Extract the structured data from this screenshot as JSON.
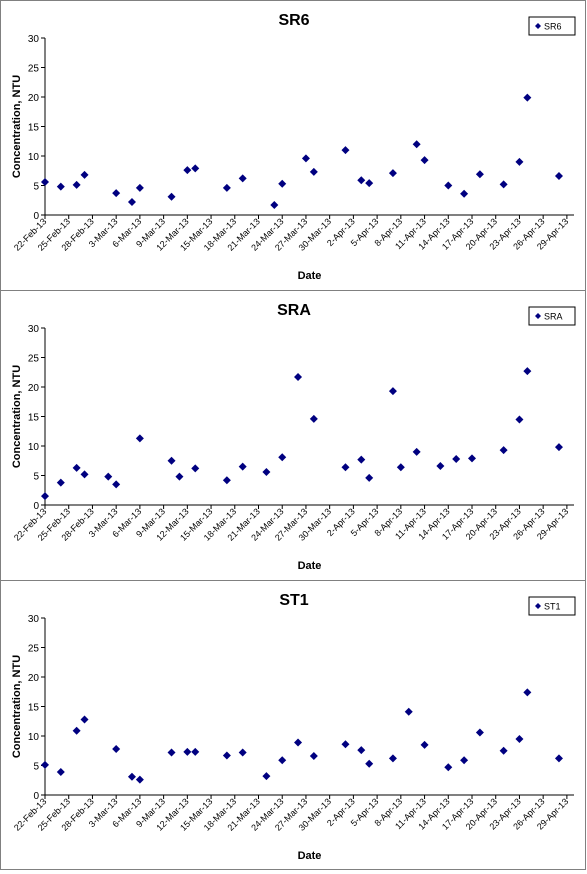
{
  "chart_data": [
    {
      "type": "scatter",
      "title": "SR6",
      "xlabel": "Date",
      "ylabel": "Concentration, NTU",
      "ylim": [
        0,
        30
      ],
      "yticks": [
        0,
        5,
        10,
        15,
        20,
        25,
        30
      ],
      "xticks": [
        "22-Feb-13",
        "25-Feb-13",
        "28-Feb-13",
        "3-Mar-13",
        "6-Mar-13",
        "9-Mar-13",
        "12-Mar-13",
        "15-Mar-13",
        "18-Mar-13",
        "21-Mar-13",
        "24-Mar-13",
        "27-Mar-13",
        "30-Mar-13",
        "2-Apr-13",
        "5-Apr-13",
        "8-Apr-13",
        "11-Apr-13",
        "14-Apr-13",
        "17-Apr-13",
        "20-Apr-13",
        "23-Apr-13",
        "26-Apr-13",
        "29-Apr-13"
      ],
      "grid": false,
      "legend_position": "top-right",
      "marker_color": "#000080",
      "series": [
        {
          "name": "SR6",
          "points": [
            {
              "x": "2013-02-22",
              "y": 5.6
            },
            {
              "x": "2013-02-24",
              "y": 4.8
            },
            {
              "x": "2013-02-26",
              "y": 5.1
            },
            {
              "x": "2013-02-27",
              "y": 6.8
            },
            {
              "x": "2013-03-03",
              "y": 3.7
            },
            {
              "x": "2013-03-05",
              "y": 2.2
            },
            {
              "x": "2013-03-06",
              "y": 4.6
            },
            {
              "x": "2013-03-10",
              "y": 3.1
            },
            {
              "x": "2013-03-12",
              "y": 7.6
            },
            {
              "x": "2013-03-13",
              "y": 7.9
            },
            {
              "x": "2013-03-17",
              "y": 4.6
            },
            {
              "x": "2013-03-19",
              "y": 6.2
            },
            {
              "x": "2013-03-23",
              "y": 1.7
            },
            {
              "x": "2013-03-24",
              "y": 5.3
            },
            {
              "x": "2013-03-27",
              "y": 9.6
            },
            {
              "x": "2013-03-28",
              "y": 7.3
            },
            {
              "x": "2013-04-01",
              "y": 11.0
            },
            {
              "x": "2013-04-03",
              "y": 5.9
            },
            {
              "x": "2013-04-04",
              "y": 5.4
            },
            {
              "x": "2013-04-07",
              "y": 7.1
            },
            {
              "x": "2013-04-10",
              "y": 12.0
            },
            {
              "x": "2013-04-11",
              "y": 9.3
            },
            {
              "x": "2013-04-14",
              "y": 5.0
            },
            {
              "x": "2013-04-16",
              "y": 3.6
            },
            {
              "x": "2013-04-18",
              "y": 6.9
            },
            {
              "x": "2013-04-21",
              "y": 5.2
            },
            {
              "x": "2013-04-23",
              "y": 9.0
            },
            {
              "x": "2013-04-24",
              "y": 19.9
            },
            {
              "x": "2013-04-28",
              "y": 6.6
            }
          ]
        }
      ]
    },
    {
      "type": "scatter",
      "title": "SRA",
      "xlabel": "Date",
      "ylabel": "Concentration, NTU",
      "ylim": [
        0,
        30
      ],
      "yticks": [
        0,
        5,
        10,
        15,
        20,
        25,
        30
      ],
      "xticks": [
        "22-Feb-13",
        "25-Feb-13",
        "28-Feb-13",
        "3-Mar-13",
        "6-Mar-13",
        "9-Mar-13",
        "12-Mar-13",
        "15-Mar-13",
        "18-Mar-13",
        "21-Mar-13",
        "24-Mar-13",
        "27-Mar-13",
        "30-Mar-13",
        "2-Apr-13",
        "5-Apr-13",
        "8-Apr-13",
        "11-Apr-13",
        "14-Apr-13",
        "17-Apr-13",
        "20-Apr-13",
        "23-Apr-13",
        "26-Apr-13",
        "29-Apr-13"
      ],
      "grid": false,
      "legend_position": "top-right",
      "marker_color": "#000080",
      "series": [
        {
          "name": "SRA",
          "points": [
            {
              "x": "2013-02-22",
              "y": 1.5
            },
            {
              "x": "2013-02-24",
              "y": 3.8
            },
            {
              "x": "2013-02-26",
              "y": 6.3
            },
            {
              "x": "2013-02-27",
              "y": 5.2
            },
            {
              "x": "2013-03-02",
              "y": 4.8
            },
            {
              "x": "2013-03-03",
              "y": 3.5
            },
            {
              "x": "2013-03-06",
              "y": 11.3
            },
            {
              "x": "2013-03-10",
              "y": 7.5
            },
            {
              "x": "2013-03-11",
              "y": 4.8
            },
            {
              "x": "2013-03-13",
              "y": 6.2
            },
            {
              "x": "2013-03-17",
              "y": 4.2
            },
            {
              "x": "2013-03-19",
              "y": 6.5
            },
            {
              "x": "2013-03-22",
              "y": 5.6
            },
            {
              "x": "2013-03-24",
              "y": 8.1
            },
            {
              "x": "2013-03-26",
              "y": 21.7
            },
            {
              "x": "2013-03-28",
              "y": 14.6
            },
            {
              "x": "2013-04-01",
              "y": 6.4
            },
            {
              "x": "2013-04-03",
              "y": 7.7
            },
            {
              "x": "2013-04-04",
              "y": 4.6
            },
            {
              "x": "2013-04-07",
              "y": 19.3
            },
            {
              "x": "2013-04-08",
              "y": 6.4
            },
            {
              "x": "2013-04-10",
              "y": 9.0
            },
            {
              "x": "2013-04-13",
              "y": 6.6
            },
            {
              "x": "2013-04-15",
              "y": 7.8
            },
            {
              "x": "2013-04-17",
              "y": 7.9
            },
            {
              "x": "2013-04-21",
              "y": 9.3
            },
            {
              "x": "2013-04-23",
              "y": 14.5
            },
            {
              "x": "2013-04-24",
              "y": 22.7
            },
            {
              "x": "2013-04-28",
              "y": 9.8
            }
          ]
        }
      ]
    },
    {
      "type": "scatter",
      "title": "ST1",
      "xlabel": "Date",
      "ylabel": "Concentration, NTU",
      "ylim": [
        0,
        30
      ],
      "yticks": [
        0,
        5,
        10,
        15,
        20,
        25,
        30
      ],
      "xticks": [
        "22-Feb-13",
        "25-Feb-13",
        "28-Feb-13",
        "3-Mar-13",
        "6-Mar-13",
        "9-Mar-13",
        "12-Mar-13",
        "15-Mar-13",
        "18-Mar-13",
        "21-Mar-13",
        "24-Mar-13",
        "27-Mar-13",
        "30-Mar-13",
        "2-Apr-13",
        "5-Apr-13",
        "8-Apr-13",
        "11-Apr-13",
        "14-Apr-13",
        "17-Apr-13",
        "20-Apr-13",
        "23-Apr-13",
        "26-Apr-13",
        "29-Apr-13"
      ],
      "grid": false,
      "legend_position": "top-right",
      "marker_color": "#000080",
      "series": [
        {
          "name": "ST1",
          "points": [
            {
              "x": "2013-02-22",
              "y": 5.1
            },
            {
              "x": "2013-02-24",
              "y": 3.9
            },
            {
              "x": "2013-02-26",
              "y": 10.9
            },
            {
              "x": "2013-02-27",
              "y": 12.8
            },
            {
              "x": "2013-03-03",
              "y": 7.8
            },
            {
              "x": "2013-03-05",
              "y": 3.1
            },
            {
              "x": "2013-03-06",
              "y": 2.6
            },
            {
              "x": "2013-03-10",
              "y": 7.2
            },
            {
              "x": "2013-03-12",
              "y": 7.3
            },
            {
              "x": "2013-03-13",
              "y": 7.3
            },
            {
              "x": "2013-03-17",
              "y": 6.7
            },
            {
              "x": "2013-03-19",
              "y": 7.2
            },
            {
              "x": "2013-03-22",
              "y": 3.2
            },
            {
              "x": "2013-03-24",
              "y": 5.9
            },
            {
              "x": "2013-03-26",
              "y": 8.9
            },
            {
              "x": "2013-03-28",
              "y": 6.6
            },
            {
              "x": "2013-04-01",
              "y": 8.6
            },
            {
              "x": "2013-04-03",
              "y": 7.6
            },
            {
              "x": "2013-04-04",
              "y": 5.3
            },
            {
              "x": "2013-04-07",
              "y": 6.2
            },
            {
              "x": "2013-04-09",
              "y": 14.1
            },
            {
              "x": "2013-04-11",
              "y": 8.5
            },
            {
              "x": "2013-04-14",
              "y": 4.7
            },
            {
              "x": "2013-04-16",
              "y": 5.9
            },
            {
              "x": "2013-04-18",
              "y": 10.6
            },
            {
              "x": "2013-04-21",
              "y": 7.5
            },
            {
              "x": "2013-04-23",
              "y": 9.5
            },
            {
              "x": "2013-04-24",
              "y": 17.4
            },
            {
              "x": "2013-04-28",
              "y": 6.2
            }
          ]
        }
      ]
    }
  ]
}
